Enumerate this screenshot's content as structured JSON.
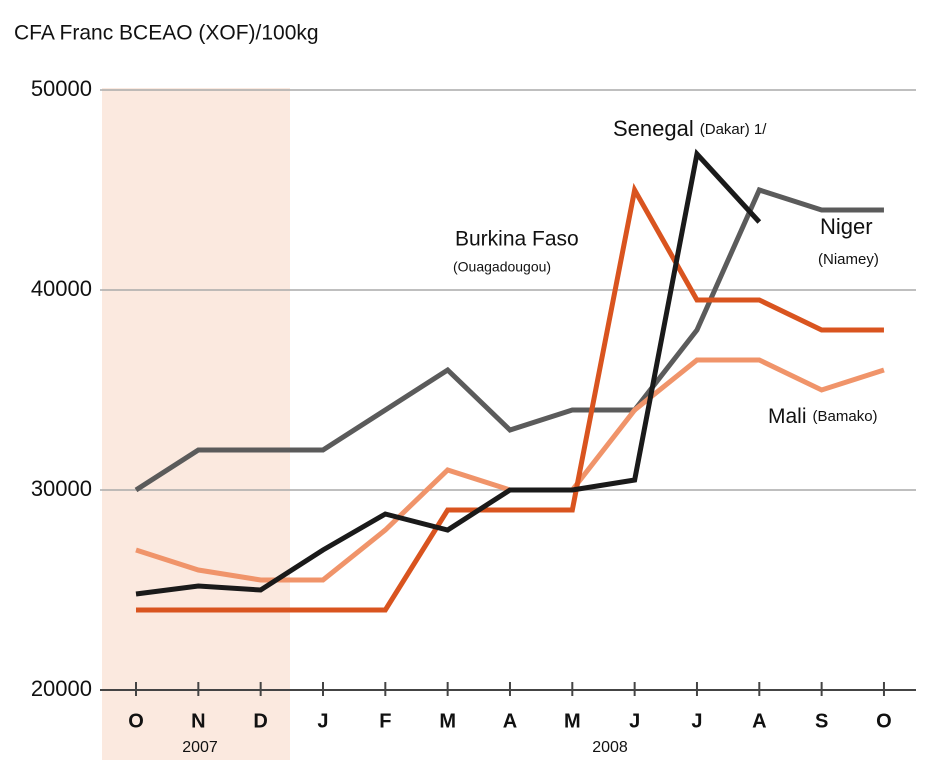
{
  "chart_data": {
    "type": "line",
    "title": "CFA Franc BCEAO (XOF)/100kg",
    "categories": [
      "O",
      "N",
      "D",
      "J",
      "F",
      "M",
      "A",
      "M",
      "J",
      "J",
      "A",
      "S",
      "O"
    ],
    "year_labels": [
      "2007",
      "2008"
    ],
    "ylim": [
      20000,
      50000
    ],
    "yticks": [
      20000,
      30000,
      40000,
      50000
    ],
    "grid": true,
    "series": [
      {
        "name": "Niger",
        "sublabel": "(Niamey)",
        "color": "#5b5b5b",
        "values": [
          30000,
          32000,
          32000,
          32000,
          34000,
          36000,
          33000,
          34000,
          34000,
          38000,
          45000,
          44000,
          44000
        ]
      },
      {
        "name": "Mali",
        "sublabel": "(Bamako)",
        "color": "#f0946a",
        "values": [
          27000,
          26000,
          25500,
          25500,
          28000,
          31000,
          30000,
          30000,
          34000,
          36500,
          36500,
          35000,
          36000
        ]
      },
      {
        "name": "Burkina Faso",
        "sublabel": "(Ouagadougou)",
        "color": "#d9541f",
        "values": [
          24000,
          24000,
          24000,
          24000,
          24000,
          29000,
          29000,
          29000,
          45000,
          39500,
          39500,
          38000,
          38000
        ]
      },
      {
        "name": "Senegal",
        "sublabel": "(Dakar) 1/",
        "color": "#1a1a1a",
        "values": [
          24800,
          25200,
          25000,
          27000,
          28800,
          28000,
          30000,
          30000,
          30500,
          46800,
          43400,
          null,
          null
        ]
      }
    ]
  }
}
